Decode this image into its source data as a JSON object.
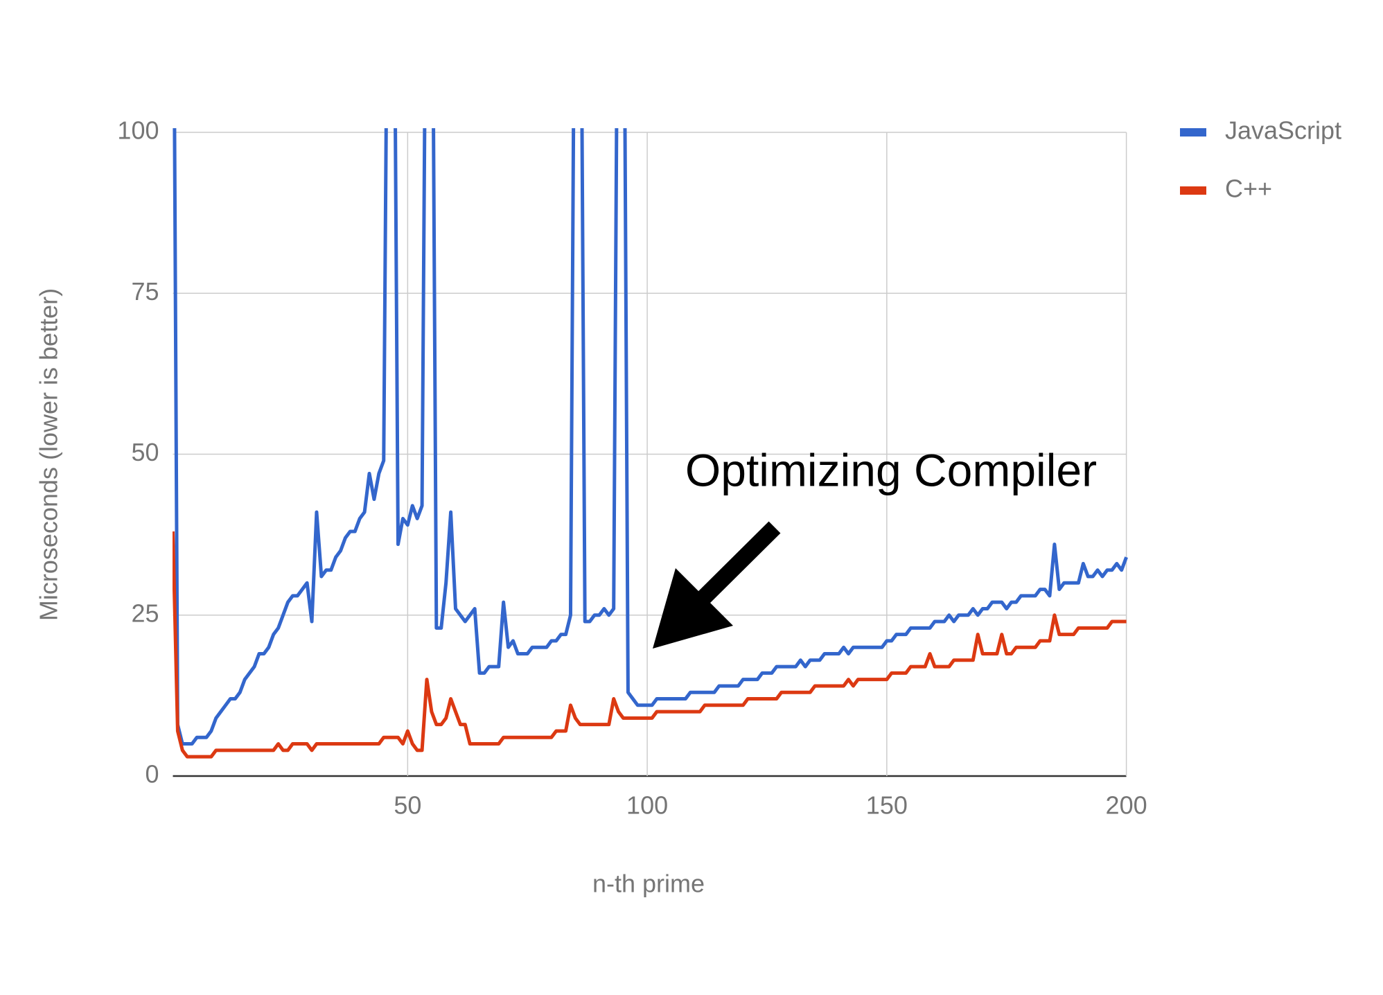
{
  "chart_data": {
    "type": "line",
    "x_label": "n-th prime",
    "y_label": "Microseconds (lower is better)",
    "annotation": "Optimizing Compiler",
    "legend": "right",
    "grid": true,
    "xlim": [
      1,
      200
    ],
    "xticks": [
      50,
      100,
      150,
      200
    ],
    "ylim": [
      0,
      100
    ],
    "yticks": [
      0,
      25,
      50,
      75,
      100
    ],
    "x": [
      1,
      2,
      3,
      4,
      5,
      6,
      7,
      8,
      9,
      10,
      11,
      12,
      13,
      14,
      15,
      16,
      17,
      18,
      19,
      20,
      21,
      22,
      23,
      24,
      25,
      26,
      27,
      28,
      29,
      30,
      31,
      32,
      33,
      34,
      35,
      36,
      37,
      38,
      39,
      40,
      41,
      42,
      43,
      44,
      45,
      46,
      47,
      48,
      49,
      50,
      51,
      52,
      53,
      54,
      55,
      56,
      57,
      58,
      59,
      60,
      61,
      62,
      63,
      64,
      65,
      66,
      67,
      68,
      69,
      70,
      71,
      72,
      73,
      74,
      75,
      76,
      77,
      78,
      79,
      80,
      81,
      82,
      83,
      84,
      85,
      86,
      87,
      88,
      89,
      90,
      91,
      92,
      93,
      94,
      95,
      96,
      97,
      98,
      99,
      100,
      101,
      102,
      103,
      104,
      105,
      106,
      107,
      108,
      109,
      110,
      111,
      112,
      113,
      114,
      115,
      116,
      117,
      118,
      119,
      120,
      121,
      122,
      123,
      124,
      125,
      126,
      127,
      128,
      129,
      130,
      131,
      132,
      133,
      134,
      135,
      136,
      137,
      138,
      139,
      140,
      141,
      142,
      143,
      144,
      145,
      146,
      147,
      148,
      149,
      150,
      151,
      152,
      153,
      154,
      155,
      156,
      157,
      158,
      159,
      160,
      161,
      162,
      163,
      164,
      165,
      166,
      167,
      168,
      169,
      170,
      171,
      172,
      173,
      174,
      175,
      176,
      177,
      178,
      179,
      180,
      181,
      182,
      183,
      184,
      185,
      186,
      187,
      188,
      189,
      190,
      191,
      192,
      193,
      194,
      195,
      196,
      197,
      198,
      199,
      200
    ],
    "series": [
      {
        "name": "JavaScript",
        "color": "#3366cc",
        "values": [
          150,
          8,
          5,
          5,
          5,
          6,
          6,
          6,
          7,
          9,
          10,
          11,
          12,
          12,
          13,
          15,
          16,
          17,
          19,
          19,
          20,
          22,
          23,
          25,
          27,
          28,
          28,
          29,
          30,
          24,
          41,
          31,
          32,
          32,
          34,
          35,
          37,
          38,
          38,
          40,
          41,
          47,
          43,
          47,
          49,
          150,
          150,
          36,
          40,
          39,
          42,
          40,
          42,
          150,
          150,
          23,
          23,
          30,
          41,
          26,
          25,
          24,
          25,
          26,
          16,
          16,
          17,
          17,
          17,
          27,
          20,
          21,
          19,
          19,
          19,
          20,
          20,
          20,
          20,
          21,
          21,
          22,
          22,
          25,
          150,
          150,
          24,
          24,
          25,
          25,
          26,
          25,
          26,
          150,
          150,
          13,
          12,
          11,
          11,
          11,
          11,
          12,
          12,
          12,
          12,
          12,
          12,
          12,
          13,
          13,
          13,
          13,
          13,
          13,
          14,
          14,
          14,
          14,
          14,
          15,
          15,
          15,
          15,
          16,
          16,
          16,
          17,
          17,
          17,
          17,
          17,
          18,
          17,
          18,
          18,
          18,
          19,
          19,
          19,
          19,
          20,
          19,
          20,
          20,
          20,
          20,
          20,
          20,
          20,
          21,
          21,
          22,
          22,
          22,
          23,
          23,
          23,
          23,
          23,
          24,
          24,
          24,
          25,
          24,
          25,
          25,
          25,
          26,
          25,
          26,
          26,
          27,
          27,
          27,
          26,
          27,
          27,
          28,
          28,
          28,
          28,
          29,
          29,
          28,
          36,
          29,
          30,
          30,
          30,
          30,
          33,
          31,
          31,
          32,
          31,
          32,
          32,
          33,
          32,
          34
        ]
      },
      {
        "name": "C++",
        "color": "#dc3912",
        "values": [
          38,
          7,
          4,
          3,
          3,
          3,
          3,
          3,
          3,
          4,
          4,
          4,
          4,
          4,
          4,
          4,
          4,
          4,
          4,
          4,
          4,
          4,
          5,
          4,
          4,
          5,
          5,
          5,
          5,
          4,
          5,
          5,
          5,
          5,
          5,
          5,
          5,
          5,
          5,
          5,
          5,
          5,
          5,
          5,
          6,
          6,
          6,
          6,
          5,
          7,
          5,
          4,
          4,
          15,
          10,
          8,
          8,
          9,
          12,
          10,
          8,
          8,
          5,
          5,
          5,
          5,
          5,
          5,
          5,
          6,
          6,
          6,
          6,
          6,
          6,
          6,
          6,
          6,
          6,
          6,
          7,
          7,
          7,
          11,
          9,
          8,
          8,
          8,
          8,
          8,
          8,
          8,
          12,
          10,
          9,
          9,
          9,
          9,
          9,
          9,
          9,
          10,
          10,
          10,
          10,
          10,
          10,
          10,
          10,
          10,
          10,
          11,
          11,
          11,
          11,
          11,
          11,
          11,
          11,
          11,
          12,
          12,
          12,
          12,
          12,
          12,
          12,
          13,
          13,
          13,
          13,
          13,
          13,
          13,
          14,
          14,
          14,
          14,
          14,
          14,
          14,
          15,
          14,
          15,
          15,
          15,
          15,
          15,
          15,
          15,
          16,
          16,
          16,
          16,
          17,
          17,
          17,
          17,
          19,
          17,
          17,
          17,
          17,
          18,
          18,
          18,
          18,
          18,
          22,
          19,
          19,
          19,
          19,
          22,
          19,
          19,
          20,
          20,
          20,
          20,
          20,
          21,
          21,
          21,
          25,
          22,
          22,
          22,
          22,
          23,
          23,
          23,
          23,
          23,
          23,
          23,
          24,
          24,
          24,
          24
        ]
      }
    ]
  }
}
